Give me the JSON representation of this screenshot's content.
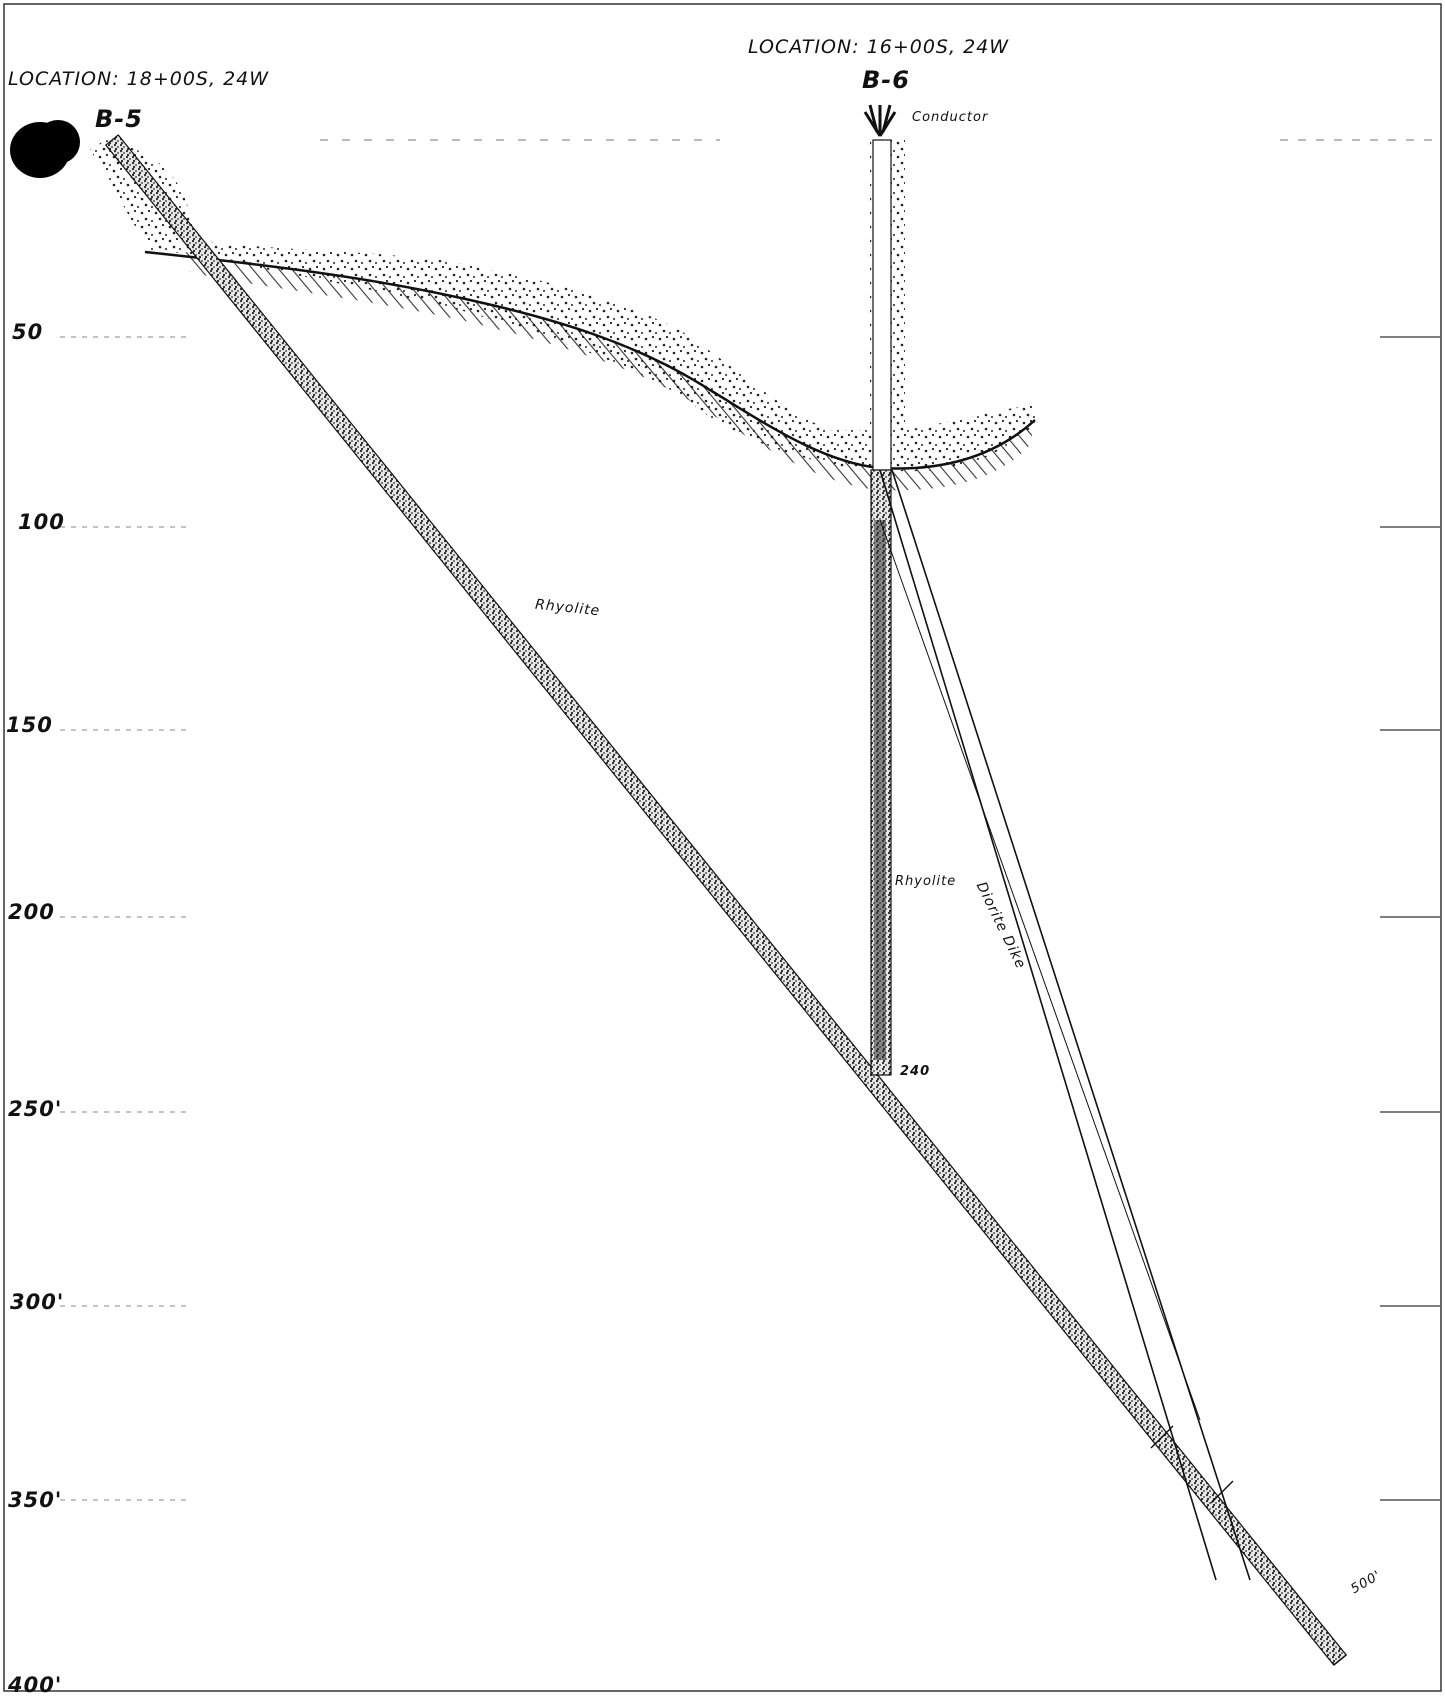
{
  "sheet": {
    "location_b5": "LOCATION: 18+00S, 24W",
    "location_b6": "LOCATION: 16+00S, 24W",
    "hole_b5": "B-5",
    "hole_b6": "B-6",
    "conductor_label": "Conductor",
    "rhyolite_b5": "Rhyolite",
    "rhyolite_b6": "Rhyolite",
    "dike_label": "Diorite Dike",
    "b6_end_depth": "240",
    "b5_end_depth": "500'",
    "depth_labels": [
      "50",
      "100",
      "150",
      "200",
      "250'",
      "300'",
      "350'",
      "400'"
    ]
  },
  "colors": {
    "ink": "#111111",
    "paper": "#ffffff"
  }
}
